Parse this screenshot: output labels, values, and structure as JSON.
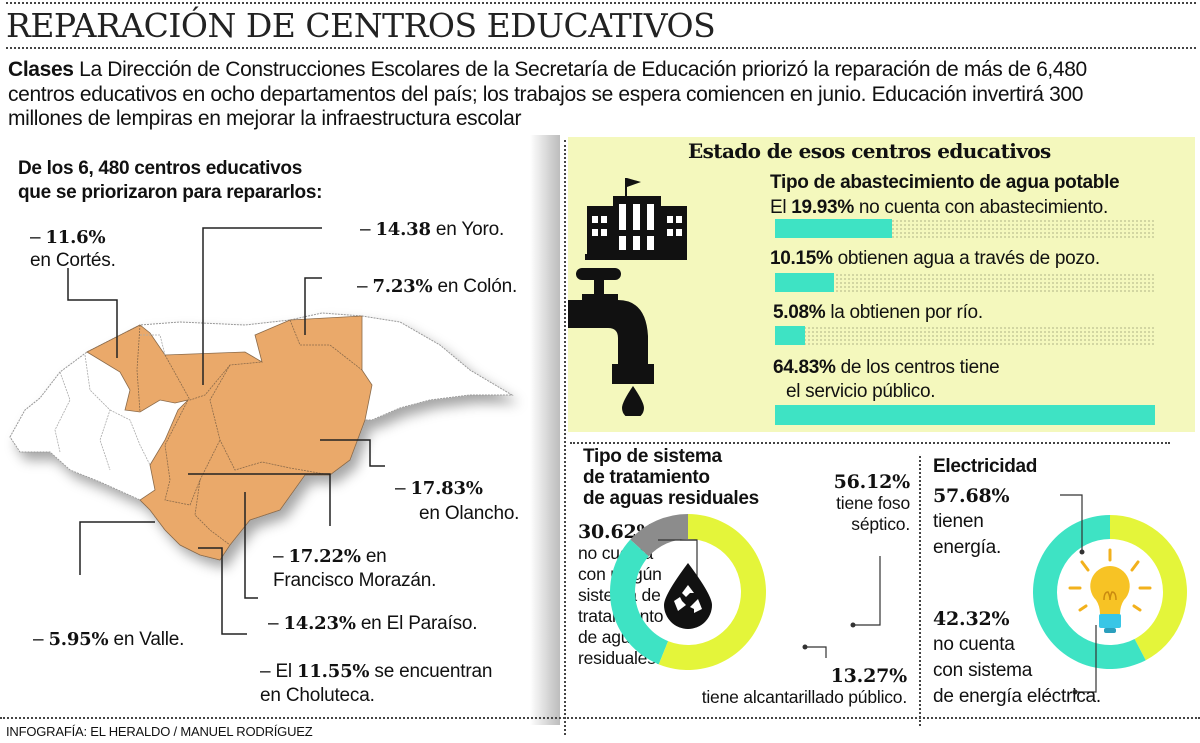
{
  "title": "REPARACIÓN DE CENTROS EDUCATIVOS",
  "intro": {
    "lead": "Clases",
    "lines": [
      " La Dirección de Construcciones Escolares de la Secretaría de Educación priorizó la reparación de más de 6,480",
      "centros educativos en ocho departamentos del país; los trabajos se espera comiencen en junio. Educación invertirá 300",
      "millones de lempiras en mejorar la infraestructura escolar"
    ]
  },
  "map": {
    "heading": [
      "De los 6, 480 centros educativos",
      "que se priorizaron para repararlos:"
    ],
    "highlight_color": "#eaa96a",
    "departments": [
      {
        "pre": "– ",
        "value": "11.6%",
        "post": "",
        "line2": "en Cortés."
      },
      {
        "pre": "– ",
        "value": "14.38",
        "post": " en Yoro."
      },
      {
        "pre": "– ",
        "value": "7.23%",
        "post": " en Colón."
      },
      {
        "pre": "– ",
        "value": "17.83%",
        "post": "",
        "line2": "en Olancho."
      },
      {
        "pre": "– ",
        "value": "17.22%",
        "post": " en",
        "line2": "Francisco Morazán."
      },
      {
        "pre": "– ",
        "value": "14.23%",
        "post": " en El Paraíso."
      },
      {
        "pre": "– ",
        "value": "5.95%",
        "post": " en Valle."
      },
      {
        "pre": "– El ",
        "value": "11.55%",
        "post": " se encuentran",
        "line2": "en Choluteca."
      }
    ]
  },
  "estado": {
    "heading": "Estado de esos centros educativos",
    "icons": [
      "school-building-icon",
      "water-faucet-icon"
    ]
  },
  "agua": {
    "heading": "Tipo de abastecimiento de agua potable",
    "rows": [
      {
        "pre": "El ",
        "value": "19.93%",
        "post": " no cuenta con abastecimiento."
      },
      {
        "pre": "",
        "value": "10.15%",
        "post": " obtienen agua a través de pozo."
      },
      {
        "pre": "",
        "value": "5.08%",
        "post": " la obtienen por río."
      },
      {
        "pre": "",
        "value": "64.83%",
        "post": " de los centros tiene",
        "line2": "el servicio público."
      }
    ]
  },
  "aguas_residuales": {
    "heading": [
      "Tipo de sistema",
      "de tratamiento",
      "de aguas residuales"
    ],
    "a": {
      "value": "56.12%",
      "lines": [
        "tiene foso",
        "séptico."
      ]
    },
    "b": {
      "value": "30.62%",
      "lines": [
        "no cuenta",
        "con ningún",
        "sistema de",
        "tratamiento",
        "de aguas",
        "residuales."
      ]
    },
    "c": {
      "value": "13.27%",
      "lines": [
        "tiene  alcantarillado público."
      ]
    },
    "icon": "recycle-water-drop-icon"
  },
  "electricidad": {
    "heading": "Electricidad",
    "a": {
      "value": "57.68%",
      "lines": [
        "tienen",
        "energía."
      ]
    },
    "b": {
      "value": "42.32%",
      "lines": [
        "no cuenta",
        "con sistema",
        "de energía eléctrica."
      ]
    },
    "icon": "light-bulb-icon"
  },
  "footer": "INFOGRAFÍA: EL HERALDO / MANUEL RODRÍGUEZ",
  "colors": {
    "teal": "#3ee3c4",
    "lime": "#e4f53a",
    "gray": "#8c8c8c",
    "panel": "#f4f8bd"
  },
  "chart_data": [
    {
      "type": "bar",
      "orientation": "horizontal",
      "title": "Tipo de abastecimiento de agua potable",
      "categories": [
        "no cuenta con abastecimiento",
        "pozo",
        "río",
        "servicio público"
      ],
      "values": [
        19.93,
        10.15,
        5.08,
        64.83
      ],
      "unit": "%"
    },
    {
      "type": "pie",
      "style": "donut",
      "title": "Tipo de sistema de tratamiento de aguas residuales",
      "categories": [
        "tiene foso séptico",
        "no cuenta con ningún sistema",
        "tiene alcantarillado público"
      ],
      "values": [
        56.12,
        30.62,
        13.27
      ],
      "colors": [
        "#e4f53a",
        "#3ee3c4",
        "#8c8c8c"
      ],
      "unit": "%"
    },
    {
      "type": "pie",
      "style": "donut",
      "title": "Electricidad",
      "categories": [
        "tienen energía",
        "no cuenta con sistema de energía eléctrica"
      ],
      "values": [
        57.68,
        42.32
      ],
      "colors": [
        "#3ee3c4",
        "#e4f53a"
      ],
      "unit": "%"
    },
    {
      "type": "table",
      "title": "De los 6, 480 centros educativos que se priorizaron para repararlos",
      "categories": [
        "Cortés",
        "Yoro",
        "Colón",
        "Olancho",
        "Francisco Morazán",
        "El Paraíso",
        "Valle",
        "Choluteca"
      ],
      "values": [
        11.6,
        14.38,
        7.23,
        17.83,
        17.22,
        14.23,
        5.95,
        11.55
      ],
      "unit": "%"
    }
  ]
}
